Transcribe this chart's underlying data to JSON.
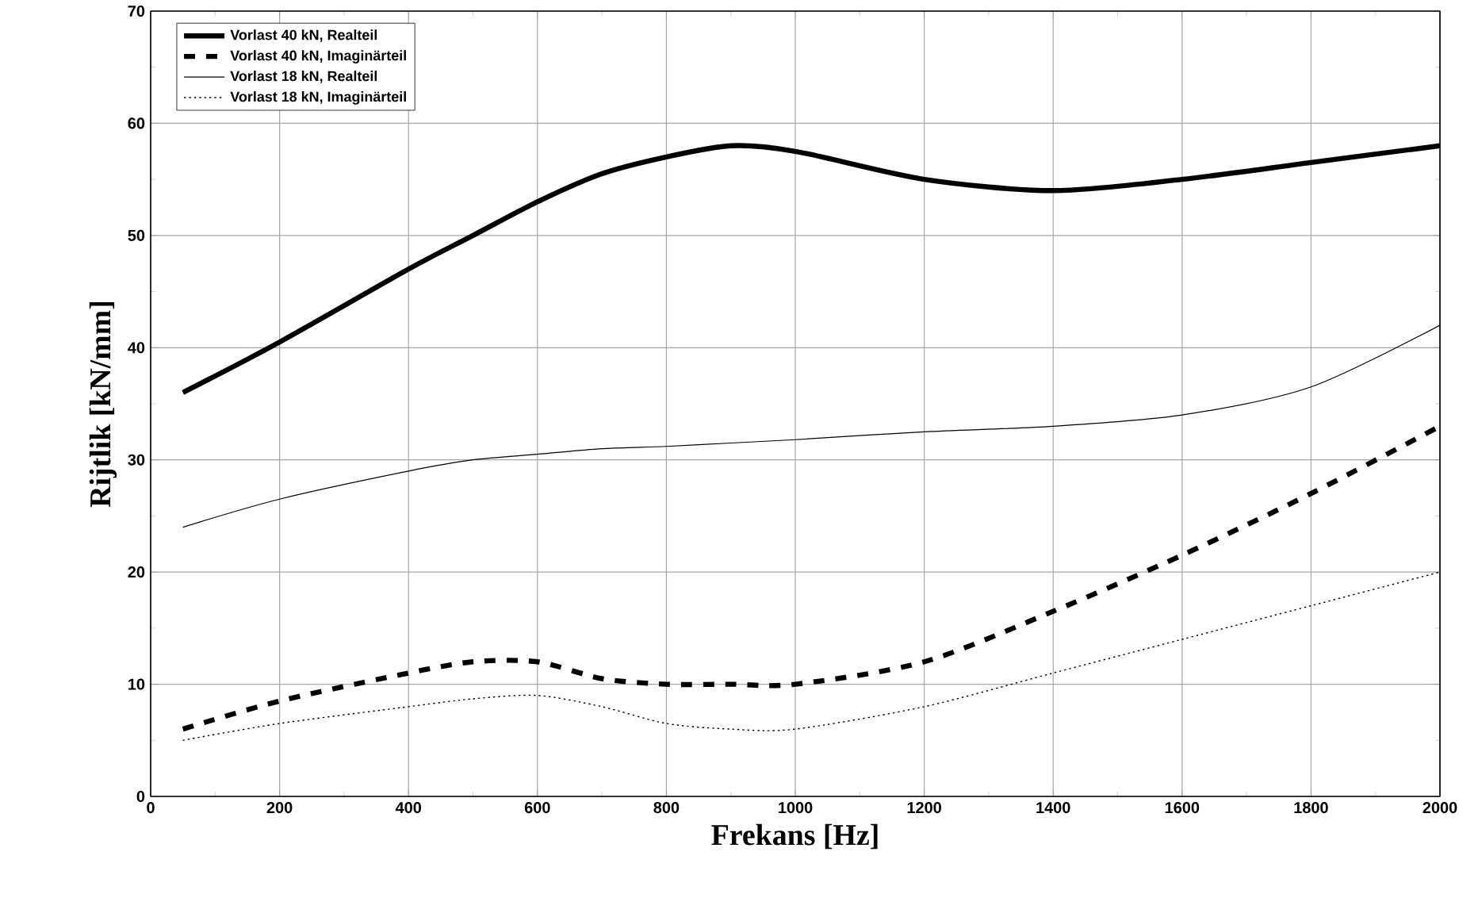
{
  "chart_data": {
    "type": "line",
    "xlabel": "Frekans [Hz]",
    "ylabel": "Rijtlik [kN/mm]",
    "x": [
      50,
      200,
      400,
      500,
      600,
      700,
      800,
      900,
      1000,
      1200,
      1400,
      1600,
      1800,
      2000
    ],
    "series": [
      {
        "name": "Vorlast 40 kN, Realteil",
        "color": "#000000",
        "line_style": "solid",
        "values": [
          36,
          40.5,
          47,
          50,
          53,
          55.5,
          57,
          58,
          57.5,
          55,
          54,
          55,
          56.5,
          58
        ]
      },
      {
        "name": "Vorlast 40 kN, Imaginärteil",
        "color": "#000000",
        "line_style": "dashed",
        "values": [
          6,
          8.5,
          11,
          12,
          12,
          10.5,
          10,
          10,
          10,
          12,
          16.5,
          21.5,
          27,
          33
        ]
      },
      {
        "name": "Vorlast 18 kN, Realteil",
        "color": "#000000",
        "line_style": "solid",
        "values": [
          24,
          26.5,
          29,
          30,
          30.5,
          31,
          31.2,
          31.5,
          31.8,
          32.5,
          33,
          34,
          36.5,
          42
        ]
      },
      {
        "name": "Vorlast 18 kN, Imaginärteil",
        "color": "#000000",
        "line_style": "dotted",
        "values": [
          5,
          6.5,
          8,
          8.7,
          9,
          8,
          6.5,
          6,
          6,
          8,
          11,
          14,
          17,
          20
        ]
      }
    ],
    "xlim": [
      0,
      2000
    ],
    "xticks": [
      0,
      200,
      400,
      600,
      800,
      1000,
      1200,
      1400,
      1600,
      1800,
      2000
    ],
    "ylim": [
      0,
      70
    ],
    "yticks": [
      0,
      10,
      20,
      30,
      40,
      50,
      60,
      70
    ],
    "grid": true,
    "legend": "top left",
    "marker": "none"
  }
}
